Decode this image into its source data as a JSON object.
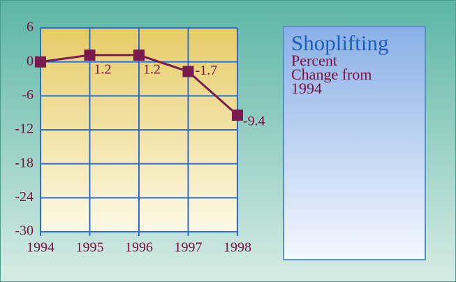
{
  "chart_data": {
    "type": "line",
    "title": "Shoplifting",
    "subtitle": "Percent Change from 1994",
    "categories": [
      "1994",
      "1995",
      "1996",
      "1997",
      "1998"
    ],
    "series": [
      {
        "name": "Shoplifting",
        "color": "#7a1a4e",
        "values": [
          0,
          1.2,
          1.2,
          -1.7,
          -9.4
        ]
      }
    ],
    "value_labels": [
      null,
      "1.2",
      "1.2",
      "-1.7",
      "-9.4"
    ],
    "ylim": [
      -30,
      6
    ],
    "yticks": [
      6,
      0,
      -6,
      -12,
      -18,
      -24,
      -30
    ],
    "grid": true
  }
}
